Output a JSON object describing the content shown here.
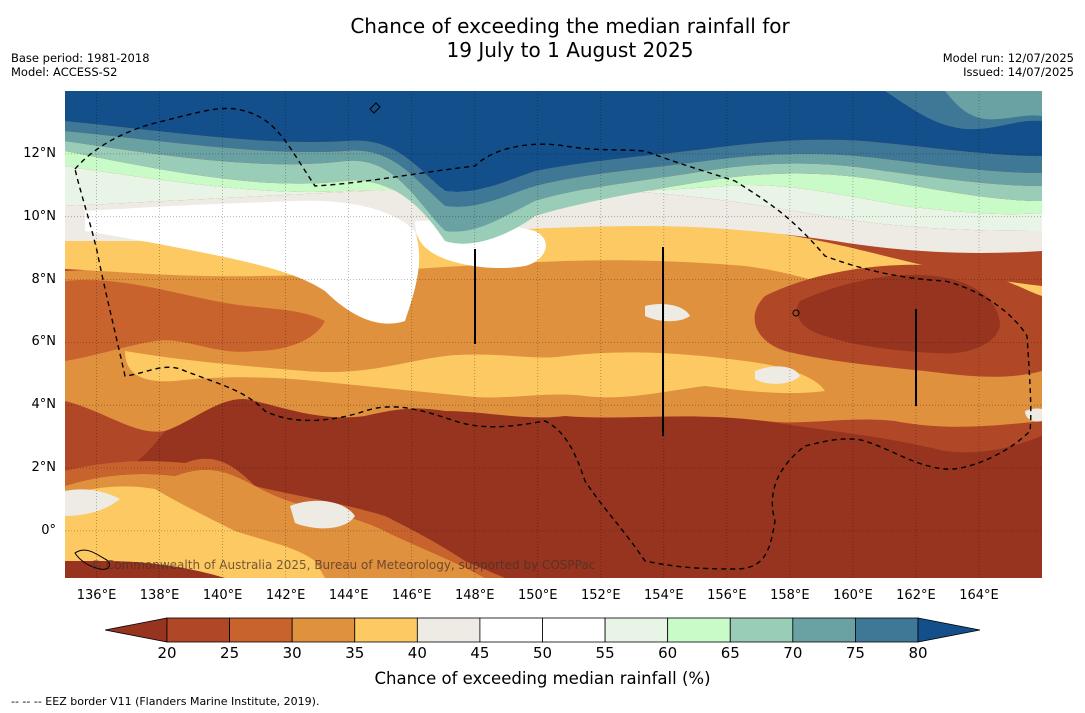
{
  "title": {
    "line1": "Chance of exceeding the median rainfall for",
    "line2": "19 July to 1 August 2025"
  },
  "meta": {
    "base_period": "Base period: 1981-2018",
    "model": "Model: ACCESS-S2",
    "model_run": "Model run: 12/07/2025",
    "issued": "Issued: 14/07/2025"
  },
  "map": {
    "lon_labels": [
      "136°E",
      "138°E",
      "140°E",
      "142°E",
      "144°E",
      "146°E",
      "148°E",
      "150°E",
      "152°E",
      "154°E",
      "156°E",
      "158°E",
      "160°E",
      "162°E",
      "164°E"
    ],
    "lat_labels": [
      "12°N",
      "10°N",
      "8°N",
      "6°N",
      "4°N",
      "2°N",
      "0°"
    ],
    "lon_range": [
      135,
      166
    ],
    "lat_range": [
      -1.5,
      14
    ],
    "grid": true,
    "copyright": "© Commonwealth of Australia 2025, Bureau of Meteorology, supported by COSPPac"
  },
  "legend": {
    "ticks": [
      "20",
      "25",
      "30",
      "35",
      "40",
      "45",
      "50",
      "55",
      "60",
      "65",
      "70",
      "75",
      "80"
    ],
    "title": "Chance of exceeding median rainfall (%)",
    "colors": {
      "below20": "#96341f",
      "b20_25": "#b04828",
      "b25_30": "#c8632e",
      "b30_35": "#e0913e",
      "b35_40": "#fcc962",
      "b40_45": "#eeeae4",
      "b45_55": "#ffffff",
      "b55_60": "#e8f4e6",
      "b60_65": "#c9fbc8",
      "b65_70": "#9acdb7",
      "b70_75": "#6aa2a4",
      "b75_80": "#3f7896",
      "above80": "#134f8a"
    }
  },
  "footer": "--  --  -- EEZ border V11 (Flanders Marine Institute, 2019)."
}
